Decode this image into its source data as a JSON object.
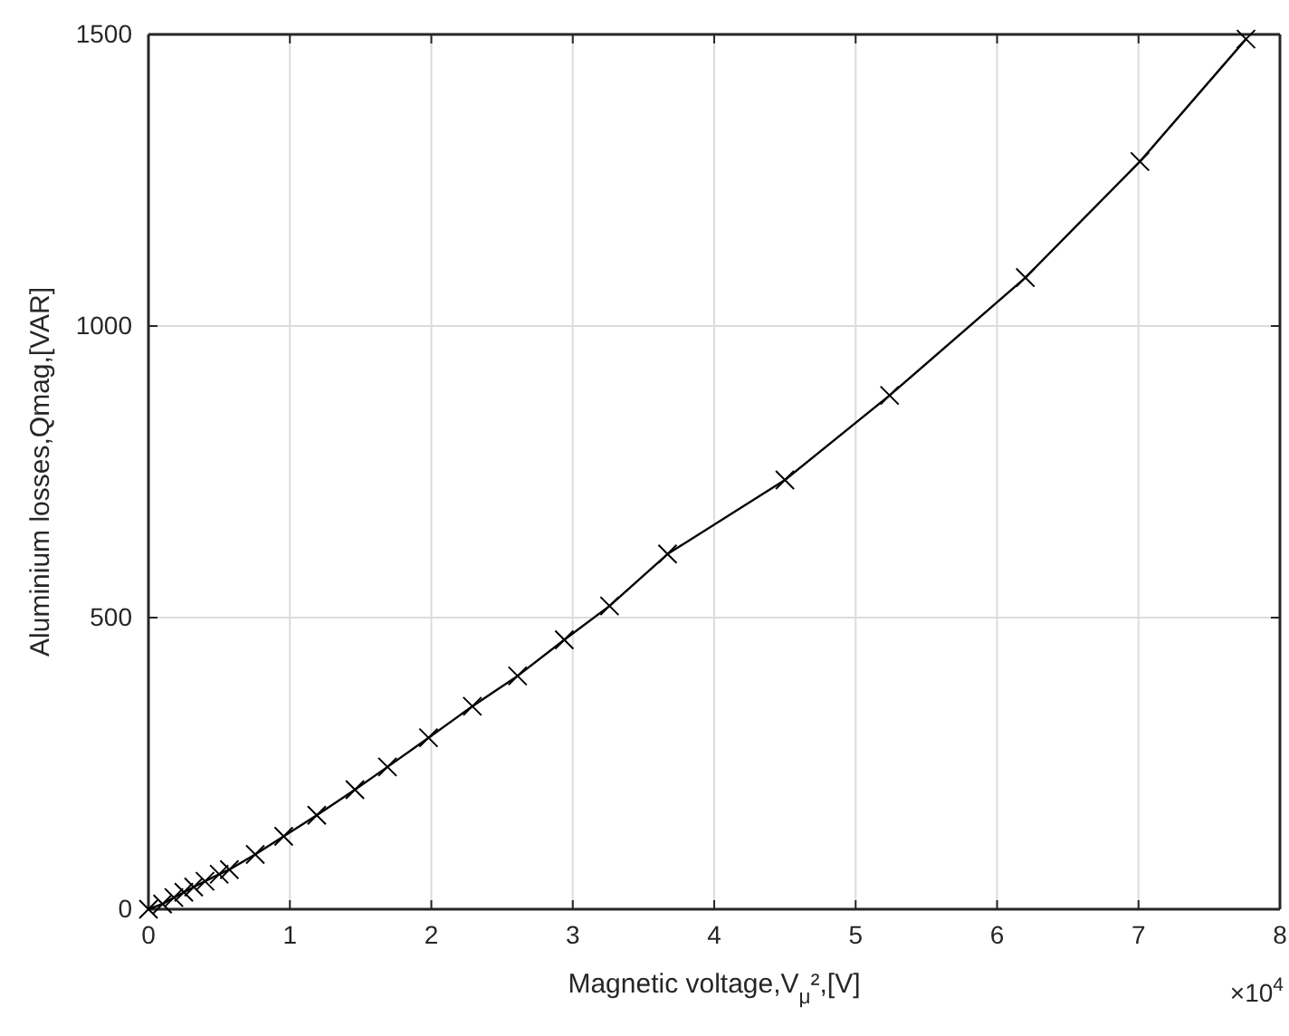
{
  "chart_data": {
    "type": "line",
    "xlabel": "Magnetic voltage,V$_{μ}$²,[V]",
    "ylabel": "Aluminium losses,Qmag,[VAR]",
    "x": [
      0,
      0.1,
      0.18,
      0.25,
      0.32,
      0.4,
      0.5,
      0.572,
      0.755,
      0.956,
      1.19,
      1.46,
      1.69,
      1.98,
      2.29,
      2.61,
      2.94,
      3.26,
      3.67,
      4.5,
      5.24,
      6.2,
      7.01,
      7.76
    ],
    "series": [
      {
        "color": "#000000",
        "values": [
          0,
          9,
          20,
          29,
          38,
          48,
          60,
          68,
          94,
          125,
          161,
          205,
          244,
          294,
          348,
          400,
          462,
          520,
          609,
          736,
          881,
          1083,
          1282,
          1492
        ]
      }
    ],
    "xlim": [
      0,
      8
    ],
    "ylim": [
      0,
      1500
    ],
    "xticks": [
      0,
      1,
      2,
      3,
      4,
      5,
      6,
      7,
      8
    ],
    "yticks": [
      0,
      500,
      1000,
      1500
    ],
    "annotations": [
      "×10$^{4}$"
    ],
    "grid": true,
    "marker": "cross",
    "line_style": "solid"
  }
}
